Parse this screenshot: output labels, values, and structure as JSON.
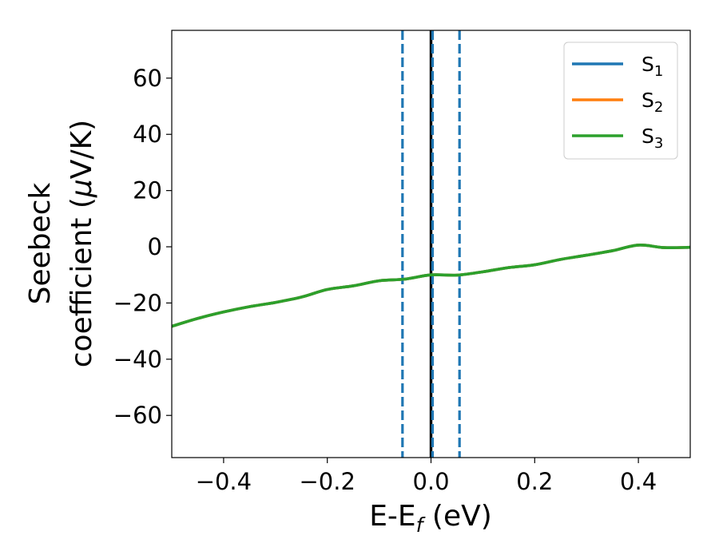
{
  "chart_data": {
    "type": "line",
    "xlabel": {
      "main": "E-E",
      "sub": "f",
      "unit": " (eV)"
    },
    "ylabel": {
      "line1": "Seebeck",
      "line2": "coefficient  (",
      "mu": "μ",
      "unit": "V/K)"
    },
    "xlim": [
      -0.5,
      0.5
    ],
    "ylim": [
      -75,
      77
    ],
    "xticks": [
      -0.4,
      -0.2,
      0.0,
      0.2,
      0.4
    ],
    "xtick_labels": [
      "−0.4",
      "−0.2",
      "0.0",
      "0.2",
      "0.4"
    ],
    "yticks": [
      -60,
      -40,
      -20,
      0,
      20,
      40,
      60
    ],
    "ytick_labels": [
      "−60",
      "−40",
      "−20",
      "0",
      "20",
      "40",
      "60"
    ],
    "grid": false,
    "legend_position": "top-right",
    "x": [
      -0.5,
      -0.45,
      -0.4,
      -0.35,
      -0.3,
      -0.25,
      -0.2,
      -0.15,
      -0.1,
      -0.05,
      0.0,
      0.05,
      0.1,
      0.15,
      0.2,
      0.25,
      0.3,
      0.35,
      0.4,
      0.45,
      0.5
    ],
    "series": [
      {
        "name": "S",
        "sub": "1",
        "color": "#1f77b4",
        "values": [
          -28.3,
          -25.5,
          -23.2,
          -21.3,
          -19.8,
          -17.9,
          -15.2,
          -13.9,
          -12.1,
          -11.5,
          -10.0,
          -10.1,
          -8.9,
          -7.4,
          -6.4,
          -4.5,
          -3.0,
          -1.4,
          0.6,
          -0.3,
          -0.2
        ]
      },
      {
        "name": "S",
        "sub": "2",
        "color": "#ff7f0e",
        "values": [
          -28.3,
          -25.5,
          -23.2,
          -21.3,
          -19.8,
          -17.9,
          -15.2,
          -13.9,
          -12.1,
          -11.5,
          -10.0,
          -10.1,
          -8.9,
          -7.4,
          -6.4,
          -4.5,
          -3.0,
          -1.4,
          0.6,
          -0.3,
          -0.2
        ]
      },
      {
        "name": "S",
        "sub": "3",
        "color": "#2ca02c",
        "values": [
          -28.3,
          -25.5,
          -23.2,
          -21.3,
          -19.8,
          -17.9,
          -15.2,
          -13.9,
          -12.1,
          -11.5,
          -10.0,
          -10.1,
          -8.9,
          -7.4,
          -6.4,
          -4.5,
          -3.0,
          -1.4,
          0.6,
          -0.3,
          -0.2
        ]
      }
    ],
    "vlines": [
      {
        "x": 0.0,
        "color": "#000000",
        "style": "solid"
      },
      {
        "x": -0.055,
        "color": "#1f77b4",
        "style": "dashed"
      },
      {
        "x": 0.003,
        "color": "#1f77b4",
        "style": "dashed"
      },
      {
        "x": 0.055,
        "color": "#1f77b4",
        "style": "dashed"
      }
    ]
  }
}
